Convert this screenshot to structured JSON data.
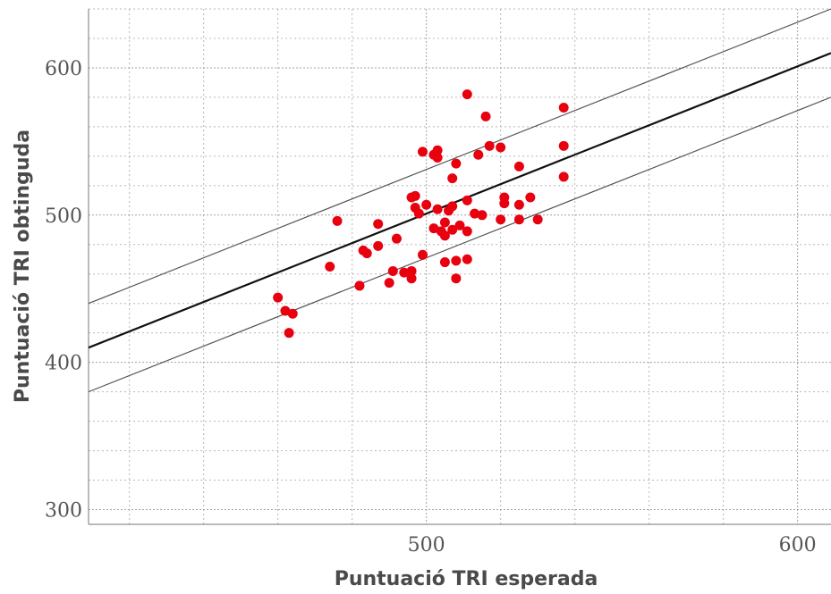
{
  "chart_data": {
    "type": "scatter",
    "title": "",
    "xlabel": "Puntuació TRI esperada",
    "ylabel": "Puntuació TRI obtinguda",
    "xlim": [
      409,
      609
    ],
    "ylim": [
      290,
      640
    ],
    "x_ticks": [
      500,
      600
    ],
    "x_tick_labels": [
      "500",
      "600"
    ],
    "y_ticks": [
      300,
      400,
      500,
      600
    ],
    "y_tick_labels": [
      "300",
      "400",
      "500",
      "600"
    ],
    "grid": true,
    "colors": {
      "points": "#e8000f",
      "main_line": "#111111",
      "band_lines": "#555555",
      "grid": "#9a9a9a"
    },
    "reference_lines": [
      {
        "kind": "identity",
        "points": [
          [
            409,
            410
          ],
          [
            609,
            610
          ]
        ]
      },
      {
        "kind": "upper-band",
        "points": [
          [
            409,
            440
          ],
          [
            609,
            640
          ]
        ]
      },
      {
        "kind": "lower-band",
        "points": [
          [
            409,
            380
          ],
          [
            609,
            580
          ]
        ]
      }
    ],
    "points": [
      [
        460,
        444
      ],
      [
        462,
        435
      ],
      [
        463,
        420
      ],
      [
        464,
        433
      ],
      [
        474,
        465
      ],
      [
        476,
        496
      ],
      [
        482,
        452
      ],
      [
        483,
        476
      ],
      [
        484,
        474
      ],
      [
        487,
        479
      ],
      [
        487,
        494
      ],
      [
        490,
        454
      ],
      [
        491,
        462
      ],
      [
        492,
        484
      ],
      [
        494,
        461
      ],
      [
        496,
        462
      ],
      [
        496,
        457
      ],
      [
        496,
        512
      ],
      [
        497,
        513
      ],
      [
        497,
        505
      ],
      [
        498,
        501
      ],
      [
        499,
        543
      ],
      [
        499,
        473
      ],
      [
        500,
        507
      ],
      [
        502,
        491
      ],
      [
        502,
        541
      ],
      [
        503,
        544
      ],
      [
        503,
        504
      ],
      [
        503,
        539
      ],
      [
        504,
        489
      ],
      [
        505,
        495
      ],
      [
        505,
        486
      ],
      [
        505,
        468
      ],
      [
        506,
        503
      ],
      [
        507,
        490
      ],
      [
        507,
        525
      ],
      [
        507,
        506
      ],
      [
        508,
        535
      ],
      [
        508,
        469
      ],
      [
        508,
        457
      ],
      [
        509,
        493
      ],
      [
        511,
        510
      ],
      [
        511,
        582
      ],
      [
        511,
        489
      ],
      [
        511,
        470
      ],
      [
        513,
        501
      ],
      [
        514,
        541
      ],
      [
        515,
        500
      ],
      [
        516,
        567
      ],
      [
        517,
        547
      ],
      [
        520,
        546
      ],
      [
        520,
        497
      ],
      [
        521,
        512
      ],
      [
        521,
        508
      ],
      [
        525,
        533
      ],
      [
        525,
        507
      ],
      [
        525,
        497
      ],
      [
        528,
        512
      ],
      [
        530,
        497
      ],
      [
        537,
        573
      ],
      [
        537,
        547
      ],
      [
        537,
        526
      ]
    ]
  }
}
